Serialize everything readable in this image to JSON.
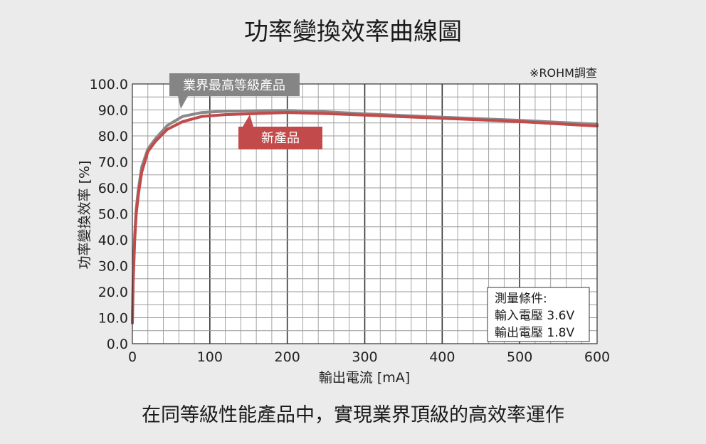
{
  "title": "功率變換效率曲線圖",
  "footer_text": "在同等級性能產品中，實現業界頂級的高效率運作",
  "source_note": "※ROHM調查",
  "colors": {
    "background": "#ebebeb",
    "industry_series": "#8a8a8a",
    "new_series": "#c24a4a",
    "grid_major": "#333333",
    "grid_minor": "#9a9a9a"
  },
  "chart_data": {
    "type": "line",
    "xlabel": "輸出電流 [mA]",
    "ylabel": "功率變換效率 [%]",
    "xlim": [
      0,
      600
    ],
    "ylim": [
      0,
      100
    ],
    "x_ticks": [
      "0",
      "100",
      "200",
      "300",
      "400",
      "500",
      "600"
    ],
    "y_ticks": [
      "0.0",
      "10.0",
      "20.0",
      "30.0",
      "40.0",
      "50.0",
      "60.0",
      "70.0",
      "80.0",
      "90.0",
      "100.0"
    ],
    "grid": true,
    "series": [
      {
        "name": "業界最高等級產品",
        "points": [
          [
            0,
            8
          ],
          [
            1,
            25
          ],
          [
            3,
            42
          ],
          [
            5,
            52
          ],
          [
            8,
            60
          ],
          [
            12,
            68
          ],
          [
            20,
            75
          ],
          [
            30,
            79
          ],
          [
            45,
            84
          ],
          [
            65,
            87.5
          ],
          [
            90,
            89
          ],
          [
            120,
            89.5
          ],
          [
            160,
            89.7
          ],
          [
            200,
            89.8
          ],
          [
            250,
            89.3
          ],
          [
            300,
            88.5
          ],
          [
            400,
            87.2
          ],
          [
            500,
            86
          ],
          [
            600,
            84.5
          ]
        ]
      },
      {
        "name": "新產品",
        "points": [
          [
            0,
            8
          ],
          [
            1,
            24
          ],
          [
            3,
            40
          ],
          [
            5,
            50
          ],
          [
            8,
            58
          ],
          [
            12,
            66
          ],
          [
            20,
            74
          ],
          [
            30,
            78
          ],
          [
            45,
            82.5
          ],
          [
            65,
            85.5
          ],
          [
            90,
            87.5
          ],
          [
            120,
            88.2
          ],
          [
            160,
            88.6
          ],
          [
            200,
            89
          ],
          [
            250,
            88.6
          ],
          [
            300,
            88
          ],
          [
            400,
            86.8
          ],
          [
            500,
            85.5
          ],
          [
            600,
            83.8
          ]
        ]
      }
    ],
    "annotations": {
      "industry_label": "業界最高等級產品",
      "new_label": "新產品"
    },
    "conditions": {
      "heading": "測量條件:",
      "input": "輸入電壓 3.6V",
      "output": "輸出電壓 1.8V"
    }
  }
}
